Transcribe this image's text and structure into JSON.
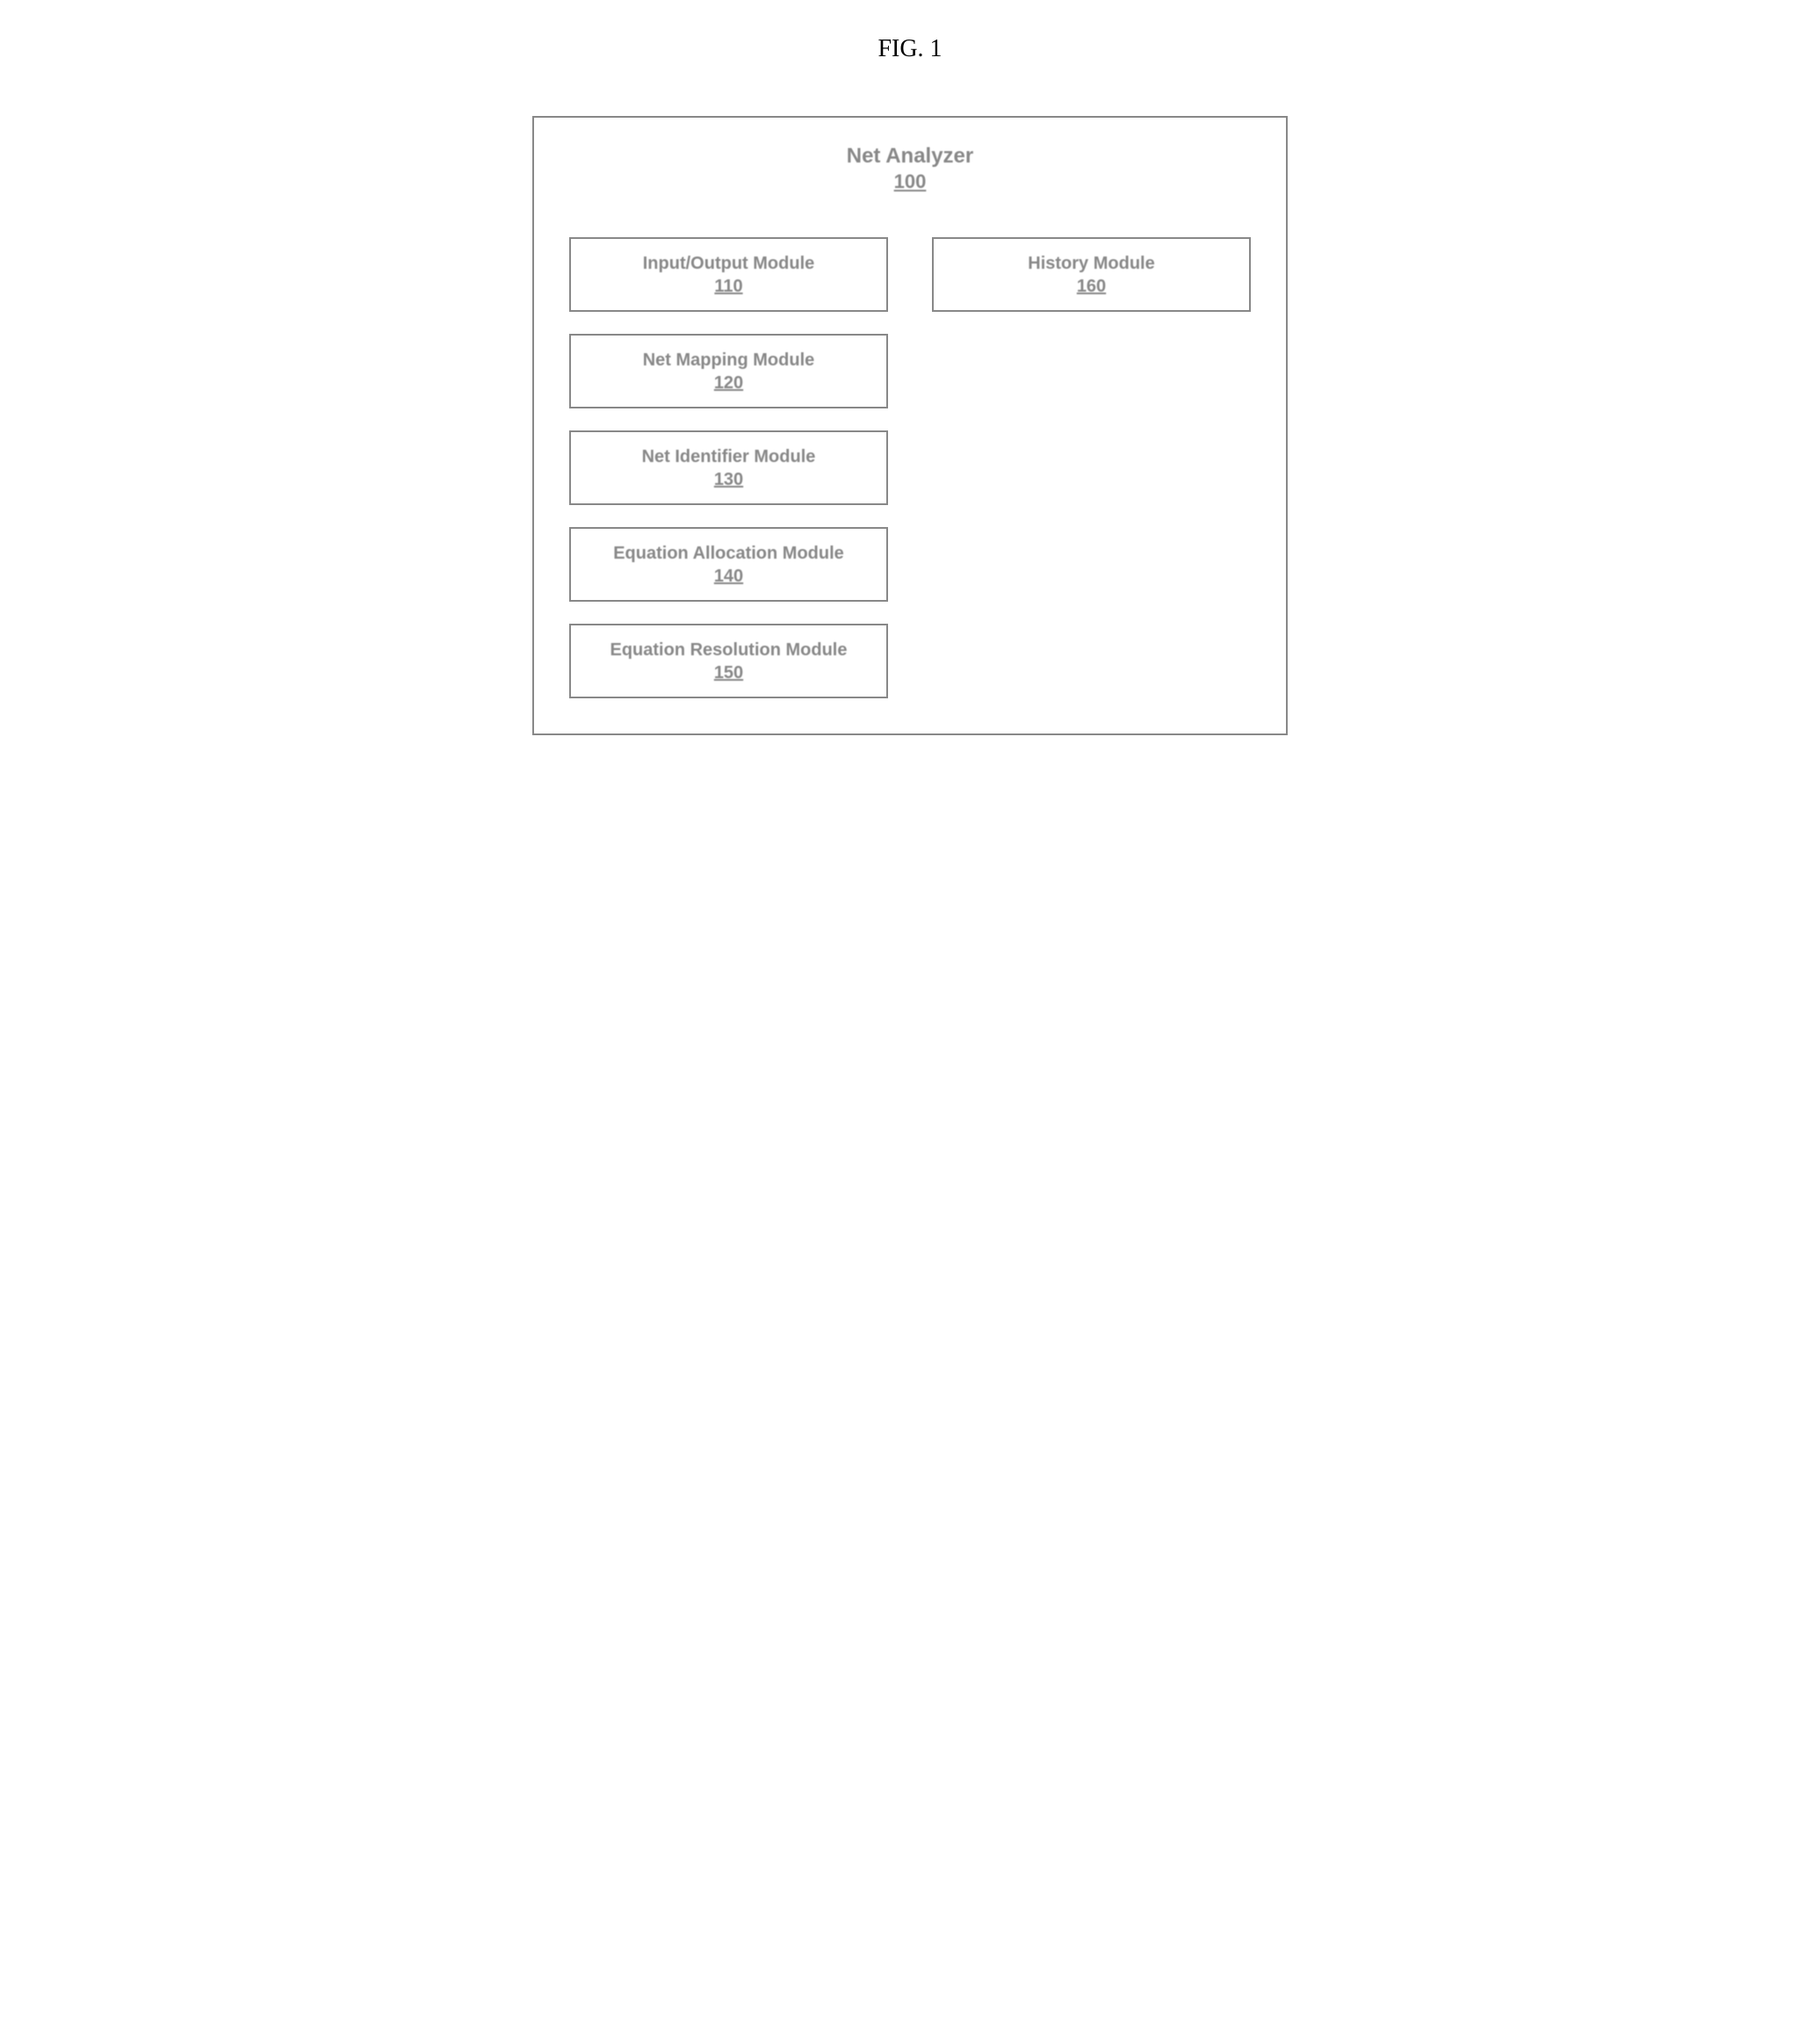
{
  "figure": {
    "label": "FIG. 1",
    "label_fontsize": 28,
    "label_color": "#000000"
  },
  "container": {
    "title": "Net Analyzer",
    "number": "100",
    "border_color": "#888888",
    "background_color": "#ffffff",
    "text_color": "#888888",
    "title_fontsize": 24,
    "number_fontsize": 22
  },
  "modules": [
    {
      "title": "Input/Output Module",
      "number": "110",
      "col": 1,
      "row": 1
    },
    {
      "title": "History Module",
      "number": "160",
      "col": 2,
      "row": 1
    },
    {
      "title": "Net Mapping Module",
      "number": "120",
      "col": 1,
      "row": 2
    },
    {
      "title": "Net Identifier Module",
      "number": "130",
      "col": 1,
      "row": 3
    },
    {
      "title": "Equation Allocation Module",
      "number": "140",
      "col": 1,
      "row": 4
    },
    {
      "title": "Equation Resolution Module",
      "number": "150",
      "col": 1,
      "row": 5
    }
  ],
  "module_style": {
    "border_color": "#888888",
    "text_color": "#888888",
    "title_fontsize": 20,
    "number_fontsize": 20,
    "min_height": 85
  },
  "layout": {
    "type": "block-diagram",
    "outer_width": 860,
    "columns": 2,
    "rows": 5,
    "gap_row": 25,
    "gap_col": 50
  }
}
